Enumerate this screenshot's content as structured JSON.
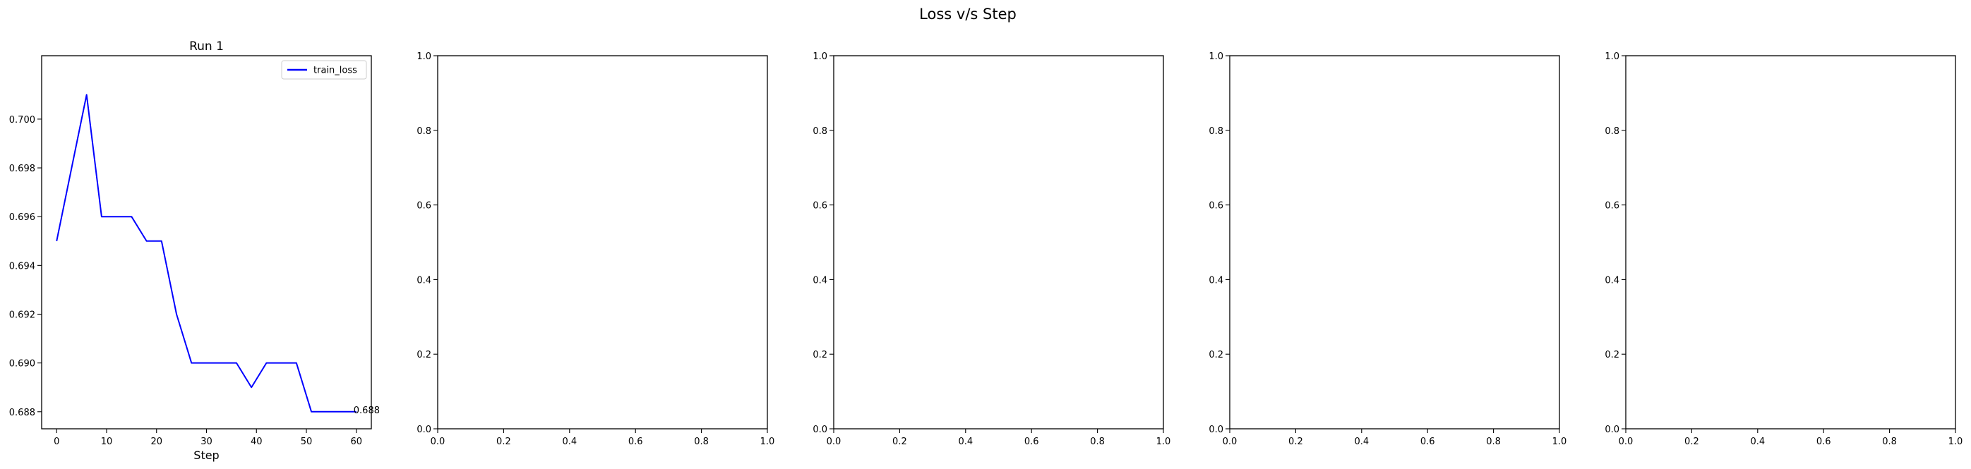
{
  "figure": {
    "suptitle": "Loss v/s Step"
  },
  "chart_data": [
    {
      "type": "line",
      "title": "Run 1",
      "xlabel": "Step",
      "ylabel": "",
      "xlim": [
        -3,
        63
      ],
      "ylim": [
        0.6873,
        0.7026
      ],
      "xticks": [
        0,
        10,
        20,
        30,
        40,
        50,
        60
      ],
      "yticks": [
        0.688,
        0.69,
        0.692,
        0.694,
        0.696,
        0.698,
        0.7
      ],
      "ytick_decimals": 3,
      "grid": false,
      "legend": {
        "position": "top-right"
      },
      "series": [
        {
          "name": "train_loss",
          "color": "#0000ff",
          "x": [
            0,
            3,
            6,
            9,
            12,
            15,
            18,
            21,
            24,
            27,
            30,
            33,
            36,
            39,
            42,
            45,
            48,
            51,
            54,
            57,
            60
          ],
          "y": [
            0.695,
            0.698,
            0.701,
            0.696,
            0.696,
            0.696,
            0.695,
            0.695,
            0.692,
            0.69,
            0.69,
            0.69,
            0.69,
            0.689,
            0.69,
            0.69,
            0.69,
            0.688,
            0.688,
            0.688,
            0.688
          ]
        }
      ],
      "annotations": [
        {
          "x": 60,
          "y": 0.688,
          "text": "0.688"
        }
      ]
    },
    {
      "type": "line",
      "title": "",
      "xlabel": "",
      "ylabel": "",
      "xlim": [
        0,
        1
      ],
      "ylim": [
        0,
        1
      ],
      "xticks": [
        0,
        0.2,
        0.4,
        0.6,
        0.8,
        1.0
      ],
      "yticks": [
        0,
        0.2,
        0.4,
        0.6,
        0.8,
        1.0
      ],
      "ytick_decimals": 1,
      "grid": false,
      "series": []
    },
    {
      "type": "line",
      "title": "",
      "xlabel": "",
      "ylabel": "",
      "xlim": [
        0,
        1
      ],
      "ylim": [
        0,
        1
      ],
      "xticks": [
        0,
        0.2,
        0.4,
        0.6,
        0.8,
        1.0
      ],
      "yticks": [
        0,
        0.2,
        0.4,
        0.6,
        0.8,
        1.0
      ],
      "ytick_decimals": 1,
      "grid": false,
      "series": []
    },
    {
      "type": "line",
      "title": "",
      "xlabel": "",
      "ylabel": "",
      "xlim": [
        0,
        1
      ],
      "ylim": [
        0,
        1
      ],
      "xticks": [
        0,
        0.2,
        0.4,
        0.6,
        0.8,
        1.0
      ],
      "yticks": [
        0,
        0.2,
        0.4,
        0.6,
        0.8,
        1.0
      ],
      "ytick_decimals": 1,
      "grid": false,
      "series": []
    },
    {
      "type": "line",
      "title": "",
      "xlabel": "",
      "ylabel": "",
      "xlim": [
        0,
        1
      ],
      "ylim": [
        0,
        1
      ],
      "xticks": [
        0,
        0.2,
        0.4,
        0.6,
        0.8,
        1.0
      ],
      "yticks": [
        0,
        0.2,
        0.4,
        0.6,
        0.8,
        1.0
      ],
      "ytick_decimals": 1,
      "grid": false,
      "series": []
    }
  ]
}
